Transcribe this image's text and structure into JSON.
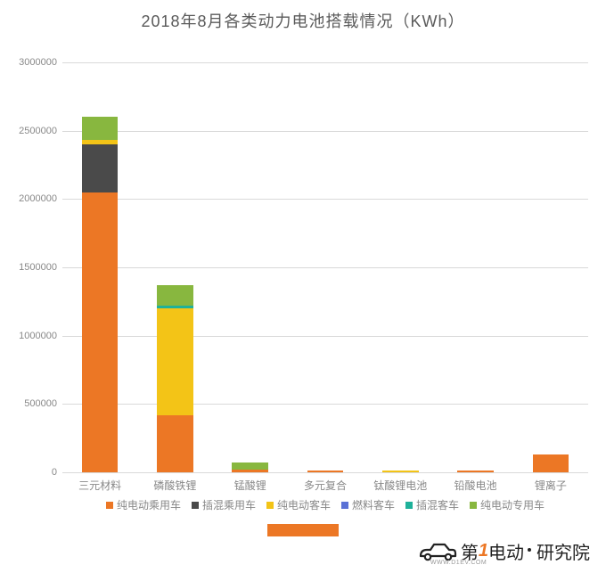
{
  "chart": {
    "type": "stacked-bar",
    "title": "2018年8月各类动力电池搭载情况（KWh）",
    "title_fontsize": 18,
    "title_color": "#5a5a5a",
    "background_color": "#ffffff",
    "grid_color": "#d9d9d9",
    "axis_label_color": "#888888",
    "axis_label_fontsize": 11,
    "ylim": [
      0,
      3000000
    ],
    "ytick_step": 500000,
    "yticks": [
      "0",
      "500000",
      "1000000",
      "1500000",
      "2000000",
      "2500000",
      "3000000"
    ],
    "bar_width_ratio": 0.48,
    "categories": [
      "三元材料",
      "磷酸铁锂",
      "锰酸锂",
      "多元复合",
      "钛酸锂电池",
      "铅酸电池",
      "锂离子"
    ],
    "series": [
      {
        "name": "纯电动乘用车",
        "color": "#ec7725"
      },
      {
        "name": "插混乘用车",
        "color": "#4a4a4a"
      },
      {
        "name": "纯电动客车",
        "color": "#f3c417"
      },
      {
        "name": "燃料客车",
        "color": "#5b72d6"
      },
      {
        "name": "插混客车",
        "color": "#1fb19a"
      },
      {
        "name": "纯电动专用车",
        "color": "#88b73f"
      }
    ],
    "data": [
      [
        2050000,
        350000,
        30000,
        0,
        0,
        170000
      ],
      [
        420000,
        0,
        780000,
        0,
        20000,
        150000
      ],
      [
        20000,
        0,
        0,
        0,
        0,
        50000
      ],
      [
        15000,
        0,
        0,
        0,
        0,
        0
      ],
      [
        0,
        0,
        15000,
        0,
        0,
        0
      ],
      [
        10000,
        0,
        0,
        0,
        0,
        0
      ],
      [
        130000,
        0,
        0,
        0,
        0,
        0
      ]
    ],
    "legend_fontsize": 12,
    "legend_color": "#888888"
  },
  "accent_bar_color": "#ec7725",
  "logo": {
    "text1": "第",
    "text1_accent": "1",
    "text2": "电动",
    "text3": "研究院",
    "small": "WWW.D1EV.COM",
    "color_main": "#222222",
    "color_accent": "#ec7725"
  }
}
